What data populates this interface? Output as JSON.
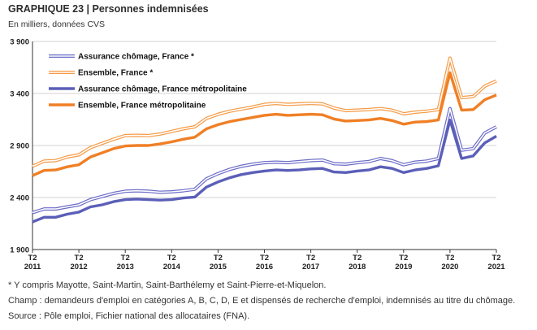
{
  "header": {
    "title": "GRAPHIQUE 23 | Personnes indemnisées",
    "subtitle": "En milliers, données CVS"
  },
  "notes": {
    "footnote": "* Y compris Mayotte, Saint-Martin, Saint-Barthélemy et Saint-Pierre-et-Miquelon.",
    "scope": "Champ : demandeurs d'emploi en catégories A, B, C, D, E  et dispensés de recherche d'emploi, indemnisés au titre du chômage.",
    "source": "Source : Pôle emploi, Fichier national des allocataires (FNA)."
  },
  "chart_data": {
    "type": "line",
    "ylim": [
      1900,
      3900
    ],
    "yticks": [
      1900,
      2400,
      2900,
      3400,
      3900
    ],
    "ytick_labels": [
      "1 900",
      "2 400",
      "2 900",
      "3 400",
      "3 900"
    ],
    "xticks": [
      {
        "q": "T2",
        "year": "2011"
      },
      {
        "q": "T2",
        "year": "2012"
      },
      {
        "q": "T2",
        "year": "2013"
      },
      {
        "q": "T2",
        "year": "2014"
      },
      {
        "q": "T2",
        "year": "2015"
      },
      {
        "q": "T2",
        "year": "2016"
      },
      {
        "q": "T2",
        "year": "2017"
      },
      {
        "q": "T2",
        "year": "2018"
      },
      {
        "q": "T2",
        "year": "2019"
      },
      {
        "q": "T2",
        "year": "2020"
      },
      {
        "q": "T2",
        "year": "2021"
      }
    ],
    "x": [
      "2011T2",
      "2011T3",
      "2011T4",
      "2012T1",
      "2012T2",
      "2012T3",
      "2012T4",
      "2013T1",
      "2013T2",
      "2013T3",
      "2013T4",
      "2014T1",
      "2014T2",
      "2014T3",
      "2014T4",
      "2015T1",
      "2015T2",
      "2015T3",
      "2015T4",
      "2016T1",
      "2016T2",
      "2016T3",
      "2016T4",
      "2017T1",
      "2017T2",
      "2017T3",
      "2017T4",
      "2018T1",
      "2018T2",
      "2018T3",
      "2018T4",
      "2019T1",
      "2019T2",
      "2019T3",
      "2019T4",
      "2020T1",
      "2020T2",
      "2020T3",
      "2020T4",
      "2021T1",
      "2021T2"
    ],
    "series": [
      {
        "name": "Assurance chômage, France *",
        "style": "double",
        "color": "#6b6bc8",
        "values": [
          2255,
          2290,
          2290,
          2310,
          2330,
          2380,
          2410,
          2440,
          2460,
          2465,
          2460,
          2450,
          2455,
          2465,
          2480,
          2580,
          2630,
          2670,
          2700,
          2720,
          2735,
          2740,
          2735,
          2745,
          2755,
          2760,
          2725,
          2720,
          2735,
          2745,
          2775,
          2755,
          2715,
          2740,
          2750,
          2775,
          3255,
          2855,
          2870,
          3020,
          3080
        ]
      },
      {
        "name": "Ensemble, France *",
        "style": "double",
        "color": "#f59a45",
        "values": [
          2700,
          2750,
          2755,
          2790,
          2810,
          2880,
          2920,
          2960,
          2995,
          2998,
          2995,
          3010,
          3035,
          3060,
          3080,
          3160,
          3200,
          3230,
          3250,
          3270,
          3295,
          3305,
          3295,
          3300,
          3305,
          3300,
          3260,
          3235,
          3240,
          3245,
          3255,
          3240,
          3205,
          3220,
          3230,
          3245,
          3740,
          3360,
          3370,
          3470,
          3520
        ]
      },
      {
        "name": "Assurance chômage, France métropolitaine",
        "style": "solid",
        "color": "#5b5fb8",
        "values": [
          2165,
          2210,
          2210,
          2240,
          2260,
          2310,
          2330,
          2360,
          2380,
          2385,
          2380,
          2375,
          2380,
          2395,
          2405,
          2500,
          2550,
          2590,
          2620,
          2640,
          2655,
          2665,
          2660,
          2665,
          2675,
          2680,
          2645,
          2640,
          2655,
          2665,
          2695,
          2680,
          2640,
          2665,
          2680,
          2705,
          3145,
          2775,
          2800,
          2925,
          2990
        ]
      },
      {
        "name": "Ensemble, France métropolitaine",
        "style": "solid",
        "color": "#f07f25",
        "values": [
          2610,
          2660,
          2665,
          2695,
          2715,
          2790,
          2830,
          2870,
          2895,
          2900,
          2900,
          2915,
          2935,
          2960,
          2980,
          3060,
          3100,
          3130,
          3150,
          3170,
          3190,
          3200,
          3190,
          3195,
          3200,
          3195,
          3155,
          3135,
          3140,
          3145,
          3160,
          3140,
          3105,
          3125,
          3130,
          3145,
          3600,
          3240,
          3245,
          3340,
          3385
        ]
      }
    ],
    "legend_position": "top-left",
    "grid": "horizontal"
  }
}
